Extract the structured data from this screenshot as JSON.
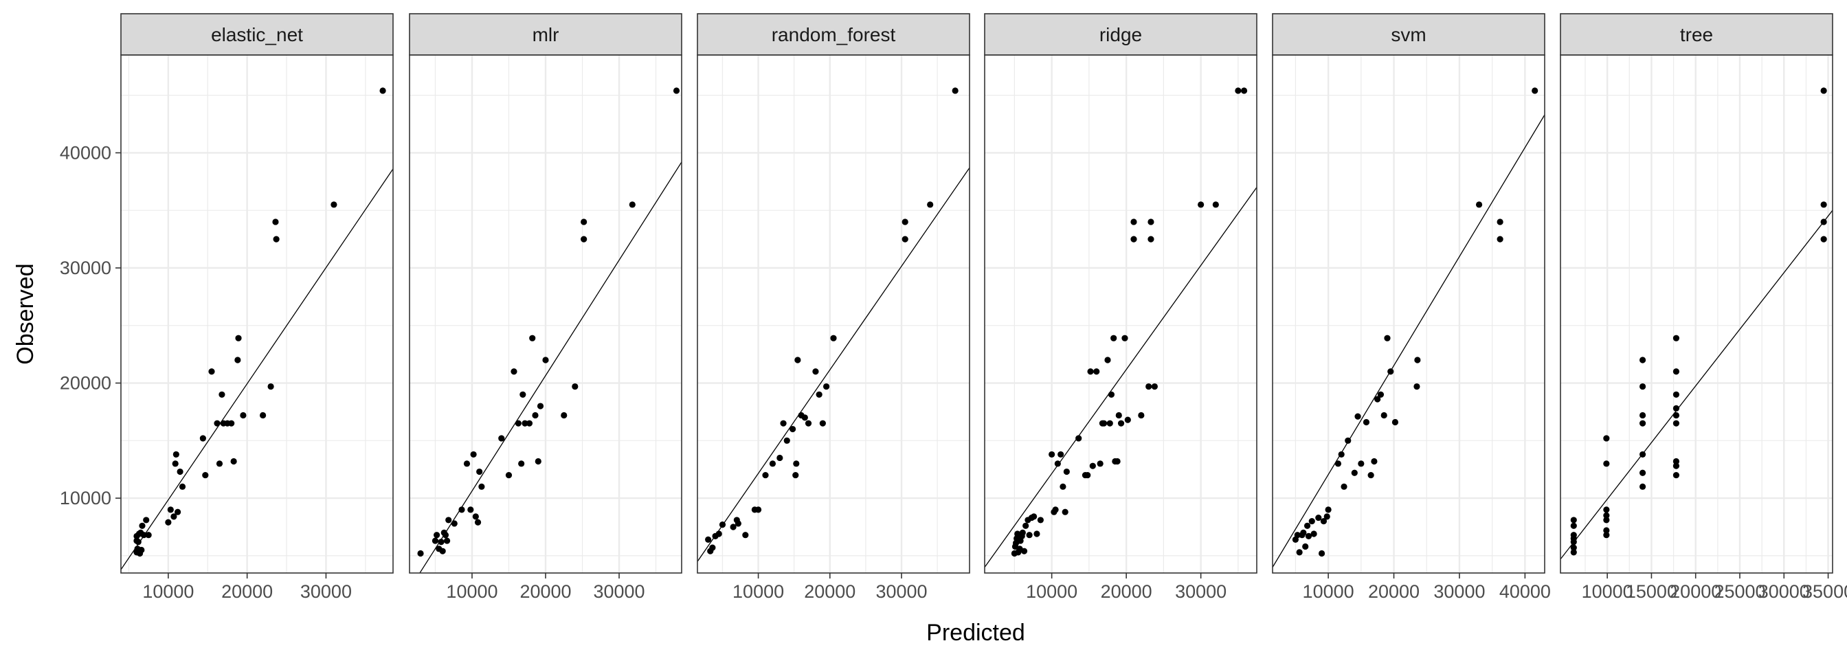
{
  "axes": {
    "xlabel": "Predicted",
    "ylabel": "Observed"
  },
  "colors": {
    "panel_background": "#ffffff",
    "strip_background": "#d9d9d9",
    "grid": "#ebebeb",
    "frame": "#333333",
    "tick_text": "#4d4d4d",
    "axis_title": "#000000",
    "points": "#000000",
    "line": "#000000"
  },
  "chart_data": {
    "type": "scatter",
    "facets": [
      "elastic_net",
      "mlr",
      "random_forest",
      "ridge",
      "svm",
      "tree"
    ],
    "xlabel": "Predicted",
    "ylabel": "Observed",
    "ylim": [
      3500,
      48500
    ],
    "y_ticks": [
      10000,
      20000,
      30000,
      40000
    ],
    "y_tick_labels": [
      "10000",
      "20000",
      "30000",
      "40000"
    ],
    "grid": true,
    "legend": "none",
    "panels": [
      {
        "name": "elastic_net",
        "xlim": [
          4000,
          38500
        ],
        "x_ticks": [
          10000,
          20000,
          30000
        ],
        "x_tick_labels": [
          "10000",
          "20000",
          "30000"
        ],
        "fit_line": {
          "x": [
            4000,
            38500
          ],
          "y": [
            3800,
            38600
          ]
        },
        "points": [
          [
            6000,
            5300
          ],
          [
            6000,
            6300
          ],
          [
            6000,
            6700
          ],
          [
            6100,
            5600
          ],
          [
            6200,
            6200
          ],
          [
            6300,
            6900
          ],
          [
            6400,
            5200
          ],
          [
            6500,
            7000
          ],
          [
            6600,
            5500
          ],
          [
            6700,
            7600
          ],
          [
            6900,
            6800
          ],
          [
            7200,
            8100
          ],
          [
            7500,
            6800
          ],
          [
            10000,
            7900
          ],
          [
            10300,
            9000
          ],
          [
            10700,
            8400
          ],
          [
            10900,
            13000
          ],
          [
            11000,
            13800
          ],
          [
            11200,
            8800
          ],
          [
            11500,
            12300
          ],
          [
            11800,
            11000
          ],
          [
            14400,
            15200
          ],
          [
            14700,
            12000
          ],
          [
            15500,
            21000
          ],
          [
            16200,
            16500
          ],
          [
            16500,
            13000
          ],
          [
            16800,
            19000
          ],
          [
            17000,
            16500
          ],
          [
            17500,
            16500
          ],
          [
            18000,
            16500
          ],
          [
            18300,
            13200
          ],
          [
            18800,
            22000
          ],
          [
            18900,
            23900
          ],
          [
            19500,
            17200
          ],
          [
            22000,
            17200
          ],
          [
            23000,
            19700
          ],
          [
            23600,
            34000
          ],
          [
            23700,
            32500
          ],
          [
            31000,
            35500
          ],
          [
            37200,
            45400
          ]
        ]
      },
      {
        "name": "mlr",
        "xlim": [
          1500,
          38500
        ],
        "x_ticks": [
          10000,
          20000,
          30000
        ],
        "x_tick_labels": [
          "10000",
          "20000",
          "30000"
        ],
        "fit_line": {
          "x": [
            1500,
            38500
          ],
          "y": [
            2100,
            39200
          ]
        },
        "points": [
          [
            3000,
            5200
          ],
          [
            5000,
            6300
          ],
          [
            5200,
            6800
          ],
          [
            5500,
            5600
          ],
          [
            5800,
            6200
          ],
          [
            6000,
            5400
          ],
          [
            6200,
            7000
          ],
          [
            6400,
            6800
          ],
          [
            6600,
            6300
          ],
          [
            6800,
            8100
          ],
          [
            7600,
            7800
          ],
          [
            8600,
            9000
          ],
          [
            9300,
            13000
          ],
          [
            9800,
            9000
          ],
          [
            10200,
            13800
          ],
          [
            10500,
            8400
          ],
          [
            10800,
            7900
          ],
          [
            11000,
            12300
          ],
          [
            11300,
            11000
          ],
          [
            14000,
            15200
          ],
          [
            15000,
            12000
          ],
          [
            15700,
            21000
          ],
          [
            16300,
            16500
          ],
          [
            16700,
            13000
          ],
          [
            16900,
            19000
          ],
          [
            17200,
            16500
          ],
          [
            17800,
            16500
          ],
          [
            18200,
            23900
          ],
          [
            18600,
            17200
          ],
          [
            19000,
            13200
          ],
          [
            19300,
            18000
          ],
          [
            20000,
            22000
          ],
          [
            22500,
            17200
          ],
          [
            24000,
            19700
          ],
          [
            25200,
            34000
          ],
          [
            25200,
            32500
          ],
          [
            31800,
            35500
          ],
          [
            37800,
            45400
          ]
        ]
      },
      {
        "name": "random_forest",
        "xlim": [
          1500,
          39500
        ],
        "x_ticks": [
          10000,
          20000,
          30000
        ],
        "x_tick_labels": [
          "10000",
          "20000",
          "30000"
        ],
        "fit_line": {
          "x": [
            1500,
            39500
          ],
          "y": [
            4500,
            38700
          ]
        },
        "points": [
          [
            3000,
            6400
          ],
          [
            3300,
            5400
          ],
          [
            3600,
            5700
          ],
          [
            4000,
            6700
          ],
          [
            4500,
            6900
          ],
          [
            5000,
            7700
          ],
          [
            6500,
            7500
          ],
          [
            7000,
            8100
          ],
          [
            7200,
            7800
          ],
          [
            8200,
            6800
          ],
          [
            9500,
            9000
          ],
          [
            10000,
            9000
          ],
          [
            11000,
            12000
          ],
          [
            12000,
            13000
          ],
          [
            13000,
            13500
          ],
          [
            13500,
            16500
          ],
          [
            14000,
            15000
          ],
          [
            14800,
            16000
          ],
          [
            15200,
            12000
          ],
          [
            15300,
            13000
          ],
          [
            15500,
            22000
          ],
          [
            16000,
            17200
          ],
          [
            16500,
            17000
          ],
          [
            17000,
            16500
          ],
          [
            18000,
            21000
          ],
          [
            18500,
            19000
          ],
          [
            19000,
            16500
          ],
          [
            19500,
            19700
          ],
          [
            20500,
            23900
          ],
          [
            30500,
            34000
          ],
          [
            30500,
            32500
          ],
          [
            34000,
            35500
          ],
          [
            37500,
            45400
          ]
        ]
      },
      {
        "name": "ridge",
        "xlim": [
          1000,
          37500
        ],
        "x_ticks": [
          10000,
          20000,
          30000
        ],
        "x_tick_labels": [
          "10000",
          "20000",
          "30000"
        ],
        "fit_line": {
          "x": [
            1000,
            37500
          ],
          "y": [
            4000,
            37000
          ]
        },
        "points": [
          [
            5000,
            5200
          ],
          [
            5100,
            5800
          ],
          [
            5200,
            6100
          ],
          [
            5300,
            6500
          ],
          [
            5400,
            6900
          ],
          [
            5500,
            5300
          ],
          [
            5700,
            5600
          ],
          [
            5800,
            6300
          ],
          [
            6000,
            6700
          ],
          [
            6100,
            7000
          ],
          [
            6300,
            5400
          ],
          [
            6500,
            7600
          ],
          [
            6800,
            8100
          ],
          [
            7000,
            6800
          ],
          [
            7300,
            8300
          ],
          [
            7600,
            8400
          ],
          [
            8000,
            6900
          ],
          [
            8500,
            8100
          ],
          [
            10000,
            13800
          ],
          [
            10300,
            8800
          ],
          [
            10500,
            9000
          ],
          [
            10800,
            13000
          ],
          [
            11200,
            13800
          ],
          [
            11500,
            11000
          ],
          [
            11800,
            8800
          ],
          [
            12000,
            12300
          ],
          [
            13600,
            15200
          ],
          [
            14500,
            12000
          ],
          [
            14800,
            12000
          ],
          [
            15200,
            21000
          ],
          [
            15500,
            12800
          ],
          [
            16000,
            21000
          ],
          [
            16500,
            13000
          ],
          [
            16800,
            16500
          ],
          [
            17000,
            16500
          ],
          [
            17500,
            22000
          ],
          [
            17800,
            16500
          ],
          [
            18000,
            19000
          ],
          [
            18300,
            23900
          ],
          [
            18500,
            13200
          ],
          [
            18800,
            13200
          ],
          [
            19000,
            17200
          ],
          [
            19300,
            16500
          ],
          [
            19800,
            23900
          ],
          [
            20200,
            16800
          ],
          [
            21000,
            34000
          ],
          [
            21000,
            32500
          ],
          [
            22000,
            17200
          ],
          [
            23000,
            19700
          ],
          [
            23300,
            34000
          ],
          [
            23300,
            32500
          ],
          [
            23800,
            19700
          ],
          [
            30000,
            35500
          ],
          [
            32000,
            35500
          ],
          [
            35000,
            45400
          ],
          [
            35800,
            45400
          ]
        ]
      },
      {
        "name": "svm",
        "xlim": [
          1500,
          43000
        ],
        "x_ticks": [
          10000,
          20000,
          30000,
          40000
        ],
        "x_tick_labels": [
          "10000",
          "20000",
          "30000",
          "40000"
        ],
        "fit_line": {
          "x": [
            1500,
            43000
          ],
          "y": [
            4000,
            43300
          ]
        },
        "points": [
          [
            5000,
            6400
          ],
          [
            5300,
            6800
          ],
          [
            5600,
            5300
          ],
          [
            6000,
            6800
          ],
          [
            6200,
            7000
          ],
          [
            6500,
            5800
          ],
          [
            6800,
            7600
          ],
          [
            7000,
            6700
          ],
          [
            7500,
            8000
          ],
          [
            7800,
            6900
          ],
          [
            8500,
            8300
          ],
          [
            9000,
            5200
          ],
          [
            9300,
            8000
          ],
          [
            9800,
            8400
          ],
          [
            10000,
            9000
          ],
          [
            11500,
            13000
          ],
          [
            12000,
            13800
          ],
          [
            12400,
            11000
          ],
          [
            13000,
            15000
          ],
          [
            14000,
            12200
          ],
          [
            14500,
            17100
          ],
          [
            15000,
            13000
          ],
          [
            15800,
            16600
          ],
          [
            16500,
            12000
          ],
          [
            17000,
            13200
          ],
          [
            17500,
            18600
          ],
          [
            18000,
            19000
          ],
          [
            18500,
            17200
          ],
          [
            19000,
            23900
          ],
          [
            19500,
            21000
          ],
          [
            20200,
            16600
          ],
          [
            23500,
            19700
          ],
          [
            23600,
            22000
          ],
          [
            33000,
            35500
          ],
          [
            36200,
            34000
          ],
          [
            36200,
            32500
          ],
          [
            41500,
            45400
          ]
        ]
      },
      {
        "name": "tree",
        "xlim": [
          4700,
          35500
        ],
        "x_ticks": [
          10000,
          15000,
          20000,
          25000,
          30000,
          35000
        ],
        "x_tick_labels": [
          "10000",
          "15000",
          "20000",
          "25000",
          "30000",
          "35000"
        ],
        "fit_line": {
          "x": [
            4700,
            35500
          ],
          "y": [
            4700,
            35000
          ]
        },
        "points": [
          [
            6200,
            5300
          ],
          [
            6200,
            5700
          ],
          [
            6200,
            6200
          ],
          [
            6200,
            6500
          ],
          [
            6200,
            6800
          ],
          [
            6200,
            7600
          ],
          [
            6200,
            8100
          ],
          [
            9900,
            6800
          ],
          [
            9900,
            7200
          ],
          [
            9900,
            8100
          ],
          [
            9900,
            8500
          ],
          [
            9900,
            9000
          ],
          [
            9900,
            13000
          ],
          [
            9900,
            15200
          ],
          [
            14000,
            11000
          ],
          [
            14000,
            12200
          ],
          [
            14000,
            13800
          ],
          [
            14000,
            16500
          ],
          [
            14000,
            17200
          ],
          [
            14000,
            19700
          ],
          [
            14000,
            22000
          ],
          [
            17800,
            12000
          ],
          [
            17800,
            12800
          ],
          [
            17800,
            13200
          ],
          [
            17800,
            16500
          ],
          [
            17800,
            17200
          ],
          [
            17800,
            17800
          ],
          [
            17800,
            19000
          ],
          [
            17800,
            21000
          ],
          [
            17800,
            23900
          ],
          [
            34500,
            32500
          ],
          [
            34500,
            34000
          ],
          [
            34500,
            35500
          ],
          [
            34500,
            45400
          ]
        ]
      }
    ]
  }
}
